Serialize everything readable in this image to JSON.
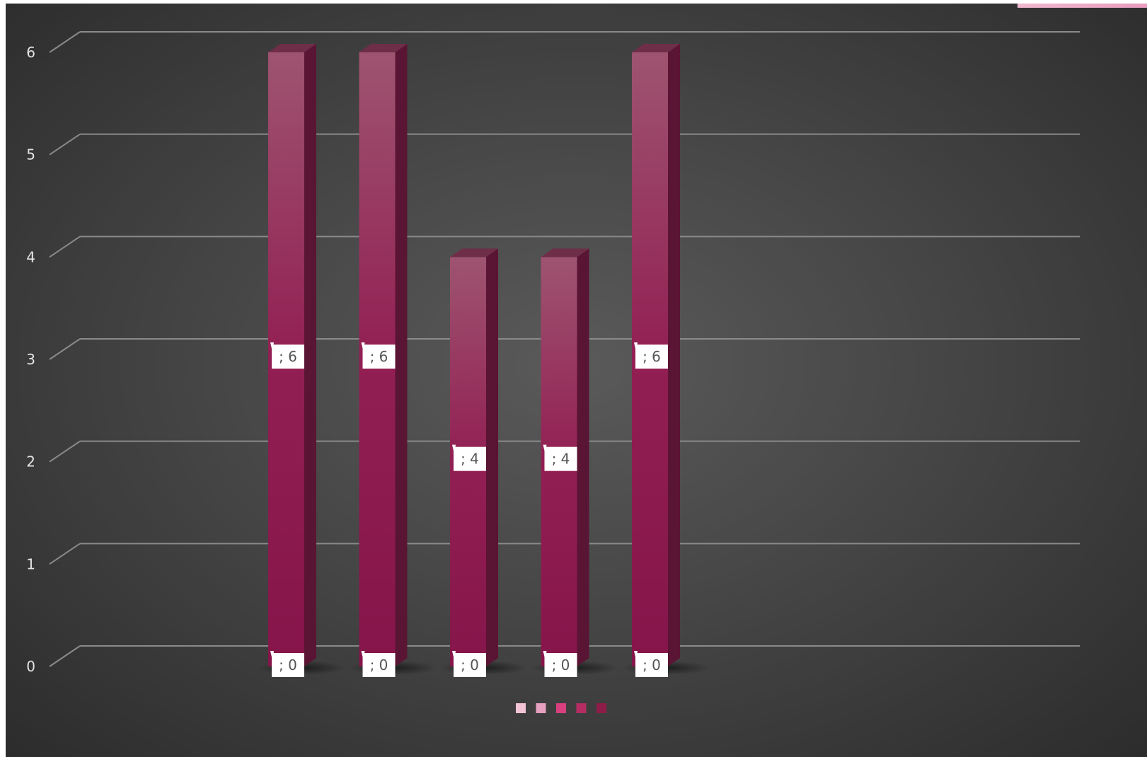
{
  "chart_data": {
    "type": "bar",
    "title": "",
    "xlabel": "",
    "ylabel": "",
    "categories": [
      "",
      "",
      "",
      "",
      ""
    ],
    "series": [
      {
        "values": [
          0,
          0,
          0,
          0,
          0
        ],
        "data_labels": [
          "; 0",
          "; 0",
          "; 0",
          "; 0",
          "; 0"
        ]
      },
      {
        "values": [
          6,
          6,
          4,
          4,
          6
        ],
        "data_labels": [
          "; 6",
          "; 6",
          "; 4",
          "; 4",
          "; 6"
        ]
      }
    ],
    "ylim": [
      0,
      6
    ],
    "yticks": [
      "0",
      "1",
      "2",
      "3",
      "4",
      "5",
      "6"
    ],
    "grid": true,
    "style": "3d-column",
    "legend_position": "bottom",
    "legend_swatch_colors": [
      "#f2c4d6",
      "#e7a0bf",
      "#d93f7f",
      "#b52d63",
      "#8e1c49"
    ],
    "colors": {
      "bar_top": "#9e5470",
      "bar_bottom": "#85154a",
      "bar_side": "#5a1434",
      "bar_cap": "#6e2e48",
      "gridline": "#8a8a8a",
      "label_box": "#ffffff",
      "accent": "#e79bbd"
    }
  }
}
